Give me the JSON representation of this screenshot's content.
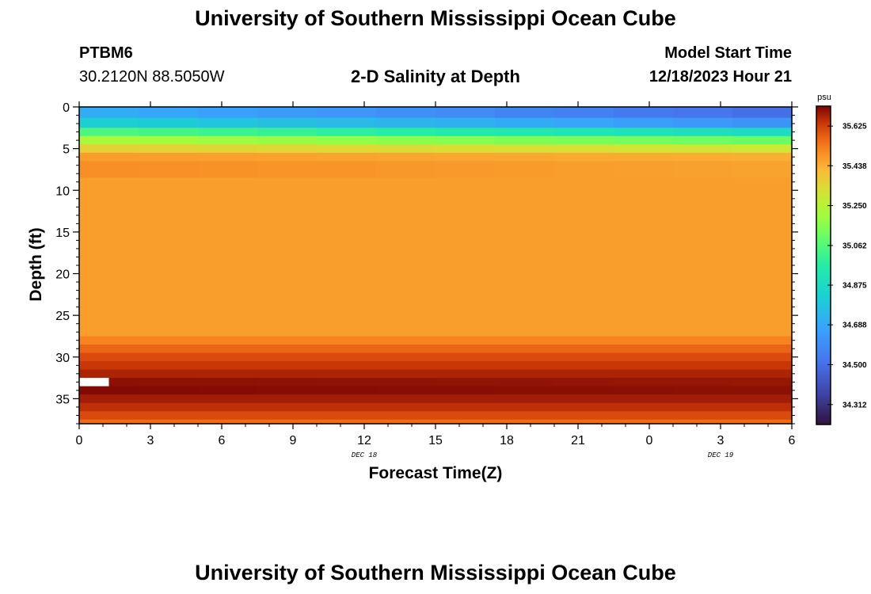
{
  "header": {
    "title": "University of Southern Mississippi Ocean Cube",
    "station": "PTBM6",
    "coordinates": "30.2120N  88.5050W",
    "plot_title": "2-D Salinity at Depth",
    "start_label": "Model Start Time",
    "start_value": "12/18/2023 Hour 21"
  },
  "footer": {
    "title": "University of Southern Mississippi Ocean Cube"
  },
  "colorbar": {
    "unit": "psu",
    "min": 34.218,
    "max": 35.719,
    "ticks": [
      "35.625",
      "35.438",
      "35.250",
      "35.062",
      "34.875",
      "34.688",
      "34.500",
      "34.312"
    ]
  },
  "chart_data": {
    "type": "heatmap",
    "title": "2-D Salinity at Depth",
    "xlabel": "Forecast Time(Z)",
    "ylabel": "Depth (ft)",
    "x_tick_labels": [
      "0",
      "3",
      "6",
      "9",
      "12",
      "15",
      "18",
      "21",
      "0",
      "3",
      "6"
    ],
    "x_range_hours": [
      0,
      30
    ],
    "date_labels": [
      {
        "text": "DEC 18",
        "at_hour": 12
      },
      {
        "text": "DEC 19",
        "at_hour": 27
      }
    ],
    "y_ticks": [
      0,
      5,
      10,
      15,
      20,
      25,
      30,
      35
    ],
    "ylim": [
      0,
      38
    ],
    "y_inverted": true,
    "depth_bands": [
      {
        "from": 0,
        "to": 1.3,
        "salinity": [
          34.7,
          34.5
        ]
      },
      {
        "from": 1.3,
        "to": 2.5,
        "salinity": [
          34.82,
          34.62
        ]
      },
      {
        "from": 2.5,
        "to": 3.5,
        "salinity": [
          35.05,
          34.88
        ]
      },
      {
        "from": 3.5,
        "to": 4.5,
        "salinity": [
          35.22,
          35.1
        ]
      },
      {
        "from": 4.5,
        "to": 5.5,
        "salinity": [
          35.36,
          35.3
        ]
      },
      {
        "from": 5.5,
        "to": 6.5,
        "salinity": [
          35.47,
          35.44
        ]
      },
      {
        "from": 6.5,
        "to": 8.5,
        "salinity": [
          35.5,
          35.46
        ]
      },
      {
        "from": 8.5,
        "to": 27.5,
        "salinity": [
          35.47,
          35.47
        ]
      },
      {
        "from": 27.5,
        "to": 28.5,
        "salinity": [
          35.52,
          35.52
        ]
      },
      {
        "from": 28.5,
        "to": 29.5,
        "salinity": [
          35.57,
          35.57
        ]
      },
      {
        "from": 29.5,
        "to": 30.5,
        "salinity": [
          35.61,
          35.61
        ]
      },
      {
        "from": 30.5,
        "to": 31.5,
        "salinity": [
          35.64,
          35.64
        ]
      },
      {
        "from": 31.5,
        "to": 32.5,
        "salinity": [
          35.67,
          35.67
        ]
      },
      {
        "from": 32.5,
        "to": 33.5,
        "salinity": [
          35.7,
          35.69
        ]
      },
      {
        "from": 33.5,
        "to": 34.5,
        "salinity": [
          35.71,
          35.7
        ]
      },
      {
        "from": 34.5,
        "to": 35.5,
        "salinity": [
          35.68,
          35.68
        ]
      },
      {
        "from": 35.5,
        "to": 36.5,
        "salinity": [
          35.65,
          35.65
        ]
      },
      {
        "from": 36.5,
        "to": 37.5,
        "salinity": [
          35.61,
          35.61
        ]
      },
      {
        "from": 37.5,
        "to": 38,
        "salinity": [
          35.56,
          35.56
        ]
      }
    ],
    "missing_data": [
      {
        "x_from": 0,
        "x_to": 1.25,
        "depth_from": 32.5,
        "depth_to": 33.5
      }
    ]
  }
}
